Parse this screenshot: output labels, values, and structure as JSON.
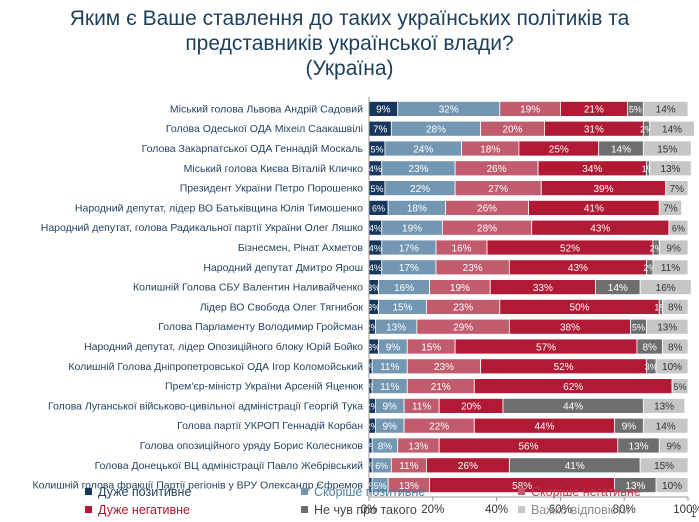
{
  "chart_data": {
    "type": "bar",
    "orientation": "horizontal",
    "stacked": true,
    "title_line1": "Яким є Ваше ставлення до таких українських політиків та",
    "title_line2": "представників української влади?",
    "subtitle": "(Україна)",
    "xlim": [
      0,
      100
    ],
    "xticks": [
      "0%",
      "20%",
      "40%",
      "60%",
      "80%",
      "100%"
    ],
    "categories": [
      "Міський голова Львова Андрій Садовий",
      "Голова Одеської ОДА Міхеіл Саакашвілі",
      "Голова Закарпатської ОДА Геннадій Москаль",
      "Міський голова Києва Віталій Кличко",
      "Президент України Петро Порошенко",
      "Народний депутат, лідер ВО Батьківщина Юлія Тимошенко",
      "Народний депутат, голова Радикальної партії України Олег Ляшко",
      "Бізнесмен, Рінат Ахметов",
      "Народний депутат Дмитро Ярош",
      "Колишній Голова СБУ Валентин Наливайченко",
      "Лідер ВО Свобода Олег Тягнибок",
      "Голова Парламенту Володимир Гройсман",
      "Народний депутат, лідер Опозиційного блоку Юрій Бойко",
      "Колишній Голова Дніпропетровської ОДА Ігор Коломойський",
      "Прем'єр-міністр України Арсеній Яценюк",
      "Голова Луганської військово-цивільної адміністрації Георгій Тука",
      "Голова партії УКРОП Геннадій Корбан",
      "Голова опозиційного уряду Борис Колесников",
      "Голова Донецької ВЦ адміністрації Павло Жебрівський",
      "Колишній голова фракції Партії регіонів у ВРУ Олександр Єфремов"
    ],
    "series": [
      {
        "name": "Дуже позитивне",
        "color": "#17375e",
        "label_color": "#ffffff",
        "values": [
          9,
          7,
          5,
          4,
          5,
          6,
          4,
          4,
          4,
          3,
          3,
          2,
          3,
          1,
          1,
          2,
          2,
          1,
          1,
          1
        ]
      },
      {
        "name": "Скоріше позитивне",
        "color": "#7397b3",
        "label_color": "#ffffff",
        "values": [
          32,
          28,
          24,
          23,
          22,
          18,
          19,
          17,
          17,
          16,
          15,
          13,
          9,
          11,
          11,
          9,
          9,
          8,
          6,
          5
        ]
      },
      {
        "name": "Скоріше негативне",
        "color": "#c15c6f",
        "label_color": "#ffffff",
        "values": [
          19,
          20,
          18,
          26,
          27,
          26,
          28,
          16,
          23,
          19,
          23,
          29,
          15,
          23,
          21,
          11,
          22,
          13,
          11,
          13
        ]
      },
      {
        "name": "Дуже негативне",
        "color": "#b01a35",
        "label_color": "#ffffff",
        "values": [
          21,
          31,
          25,
          34,
          39,
          41,
          43,
          52,
          43,
          33,
          50,
          38,
          57,
          52,
          62,
          20,
          44,
          56,
          26,
          58
        ]
      },
      {
        "name": "Не чув про такого",
        "color": "#6e6e6e",
        "label_color": "#ffffff",
        "values": [
          5,
          2,
          14,
          1,
          0,
          0,
          0,
          2,
          2,
          14,
          1,
          5,
          8,
          3,
          0,
          44,
          9,
          13,
          41,
          13
        ]
      },
      {
        "name": "Важко відповісти",
        "color": "#c6c6c6",
        "label_color": "#333333",
        "values": [
          14,
          14,
          15,
          13,
          7,
          7,
          6,
          9,
          11,
          16,
          8,
          13,
          8,
          10,
          5,
          13,
          14,
          9,
          15,
          10
        ]
      }
    ],
    "legend_position": "bottom",
    "grid": false
  },
  "page_number": "1"
}
